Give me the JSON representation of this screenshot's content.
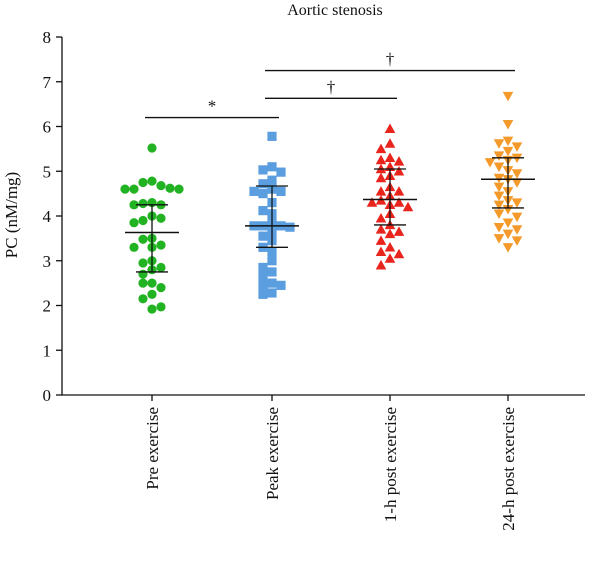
{
  "chart_data": {
    "type": "scatter",
    "title": "Aortic stenosis",
    "ylabel": "PC (nM/mg)",
    "xlabel": "",
    "ylim": [
      0,
      8
    ],
    "yticks": [
      "0",
      "1",
      "2",
      "3",
      "4",
      "5",
      "6",
      "7",
      "8"
    ],
    "categories": [
      "Pre exercise",
      "Peak exercise",
      "1-h post exercise",
      "24-h post exercise"
    ],
    "grid": false,
    "series": [
      {
        "category": "Pre exercise",
        "color": "#22b322",
        "marker": "circle",
        "median": 3.63,
        "q1": 2.75,
        "q3": 4.25,
        "values": [
          5.52,
          4.78,
          4.75,
          4.68,
          4.6,
          4.62,
          4.6,
          4.6,
          4.3,
          4.28,
          4.25,
          4.25,
          4.0,
          3.9,
          3.95,
          3.85,
          3.5,
          3.48,
          3.35,
          3.3,
          3.3,
          3.0,
          2.95,
          2.85,
          2.8,
          2.7,
          2.5,
          2.5,
          2.4,
          2.25,
          2.15,
          1.92,
          1.97
        ]
      },
      {
        "category": "Peak exercise",
        "color": "#5b9ee0",
        "marker": "square",
        "median": 3.78,
        "q1": 3.3,
        "q3": 4.67,
        "values": [
          5.78,
          5.1,
          5.03,
          4.98,
          4.8,
          4.72,
          4.6,
          4.55,
          4.55,
          4.5,
          4.3,
          4.12,
          4.05,
          3.85,
          3.78,
          3.78,
          3.78,
          3.75,
          3.65,
          3.55,
          3.45,
          3.3,
          3.2,
          3.0,
          2.85,
          2.75,
          2.65,
          2.5,
          2.45,
          2.45,
          2.28,
          2.25
        ]
      },
      {
        "category": "1-h post exercise",
        "color": "#e8241c",
        "marker": "triangle-up",
        "median": 4.37,
        "q1": 3.8,
        "q3": 5.05,
        "values": [
          5.95,
          5.62,
          5.5,
          5.3,
          5.25,
          5.22,
          5.1,
          5.05,
          5.0,
          4.9,
          4.85,
          4.65,
          4.55,
          4.55,
          4.45,
          4.35,
          4.3,
          4.3,
          4.25,
          4.2,
          4.05,
          3.95,
          3.8,
          3.7,
          3.65,
          3.6,
          3.45,
          3.3,
          3.2,
          3.15,
          3.05,
          2.9
        ]
      },
      {
        "category": "24-h post exercise",
        "color": "#f39a2b",
        "marker": "triangle-down",
        "median": 4.82,
        "q1": 4.18,
        "q3": 5.3,
        "values": [
          6.68,
          6.05,
          5.68,
          5.62,
          5.55,
          5.45,
          5.35,
          5.3,
          5.25,
          5.2,
          5.1,
          5.02,
          4.95,
          4.85,
          4.82,
          4.75,
          4.65,
          4.55,
          4.45,
          4.35,
          4.3,
          4.25,
          4.15,
          4.05,
          3.98,
          3.85,
          3.75,
          3.7,
          3.6,
          3.5,
          3.45,
          3.3
        ]
      }
    ],
    "comparisons": [
      {
        "from": "Pre exercise",
        "to": "Peak exercise",
        "y": 6.2,
        "label": "*"
      },
      {
        "from": "Peak exercise",
        "to": "1-h post exercise",
        "y": 6.63,
        "label": "†"
      },
      {
        "from": "Peak exercise",
        "to": "24-h post exercise",
        "y": 7.25,
        "label": "†"
      }
    ]
  }
}
